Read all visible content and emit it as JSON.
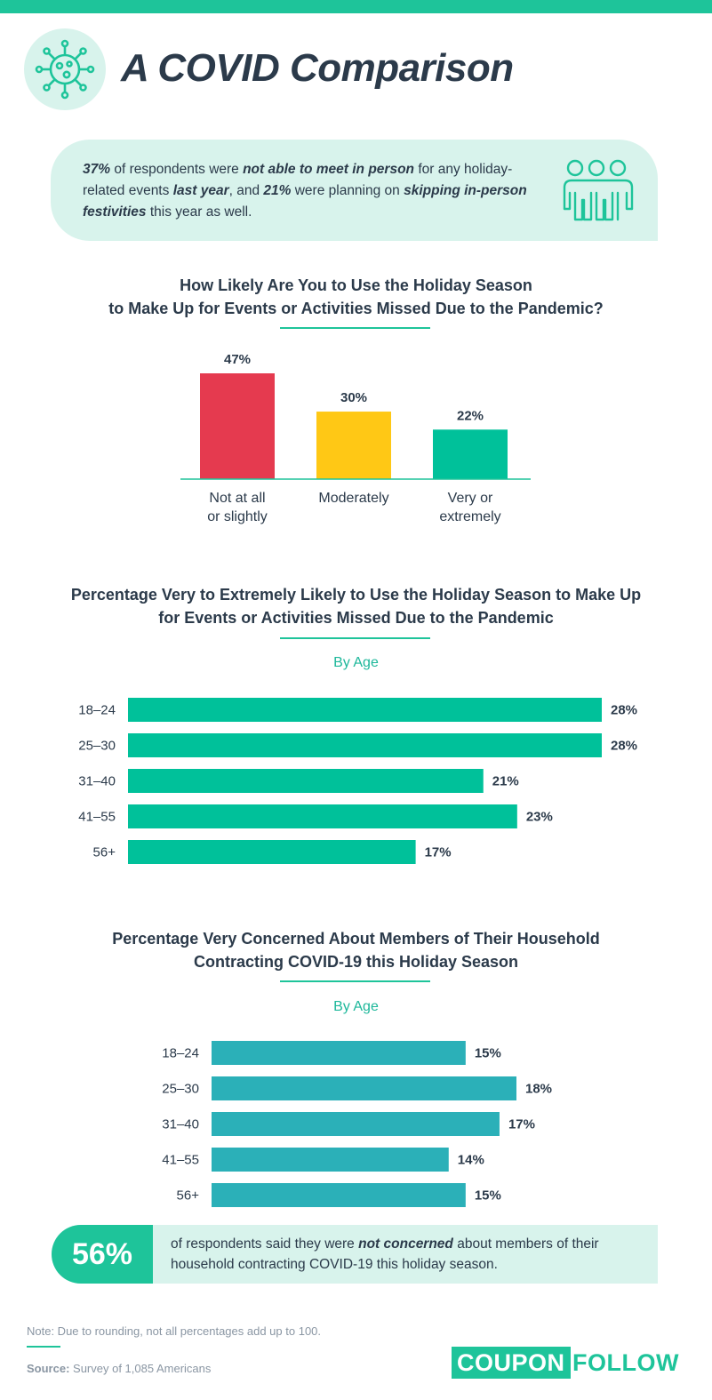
{
  "colors": {
    "brand_green": "#1ec49a",
    "mint": "#d8f3ec",
    "red": "#e53a4f",
    "yellow": "#ffc815",
    "green_bar": "#00c19a",
    "teal_bar": "#2bb0b8",
    "text": "#2b3a4a"
  },
  "icons": {
    "header": "virus-icon",
    "callout": "people-group-icon"
  },
  "header": {
    "title": "A COVID Comparison"
  },
  "callout": {
    "s1": "37%",
    "s2": " of respondents were ",
    "s3": "not able to meet in person",
    "s4": " for any holiday-related events ",
    "s5": "last year",
    "s6": ", and ",
    "s7": "21%",
    "s8": " were planning on ",
    "s9": "skipping in-person festivities",
    "s10": " this year as well."
  },
  "chart_data": [
    {
      "type": "bar",
      "title": "How Likely Are You to Use the Holiday Season to Make Up for Events or Activities Missed Due to the Pandemic?",
      "title_line1": "How Likely Are You to Use the Holiday Season",
      "title_line2": "to Make Up for Events or Activities Missed Due to the Pandemic?",
      "categories": [
        {
          "line1": "Not at all",
          "line2": "or slightly"
        },
        {
          "line1": "Moderately",
          "line2": ""
        },
        {
          "line1": "Very or",
          "line2": "extremely"
        }
      ],
      "values": [
        47,
        30,
        22
      ],
      "value_labels": [
        "47%",
        "30%",
        "22%"
      ],
      "colors": [
        "#e53a4f",
        "#ffc815",
        "#00c19a"
      ],
      "ylim": [
        0,
        47
      ]
    },
    {
      "type": "bar",
      "orientation": "horizontal",
      "title": "Percentage Very to Extremely Likely to Use the Holiday Season to Make Up for Events or Activities Missed Due to the Pandemic",
      "title_line1": "Percentage Very to Extremely Likely to Use the Holiday Season to Make Up",
      "title_line2": "for Events or Activities Missed Due to the Pandemic",
      "subtitle": "By Age",
      "categories": [
        "18–24",
        "25–30",
        "31–40",
        "41–55",
        "56+"
      ],
      "values": [
        28,
        28,
        21,
        23,
        17
      ],
      "value_labels": [
        "28%",
        "28%",
        "21%",
        "23%",
        "17%"
      ],
      "color": "#00c19a",
      "xlim": [
        0,
        28
      ]
    },
    {
      "type": "bar",
      "orientation": "horizontal",
      "title": "Percentage Very Concerned About Members of Their Household Contracting COVID-19 this Holiday Season",
      "title_line1": "Percentage Very Concerned About Members of Their Household",
      "title_line2": "Contracting COVID-19 this Holiday Season",
      "subtitle": "By Age",
      "categories": [
        "18–24",
        "25–30",
        "31–40",
        "41–55",
        "56+"
      ],
      "values": [
        15,
        18,
        17,
        14,
        15
      ],
      "value_labels": [
        "15%",
        "18%",
        "17%",
        "14%",
        "15%"
      ],
      "color": "#2bb0b8",
      "xlim": [
        0,
        18
      ]
    }
  ],
  "stat": {
    "value": "56%",
    "t1": "of respondents said they were ",
    "t2": "not concerned",
    "t3": " about members of their household contracting COVID-19 this holiday season."
  },
  "footer": {
    "note": "Note: Due to rounding, not all percentages add up to 100.",
    "source_label": "Source:",
    "source_text": " Survey of 1,085 Americans",
    "logo_part1": "COUPON",
    "logo_part2": "FOLLOW"
  }
}
